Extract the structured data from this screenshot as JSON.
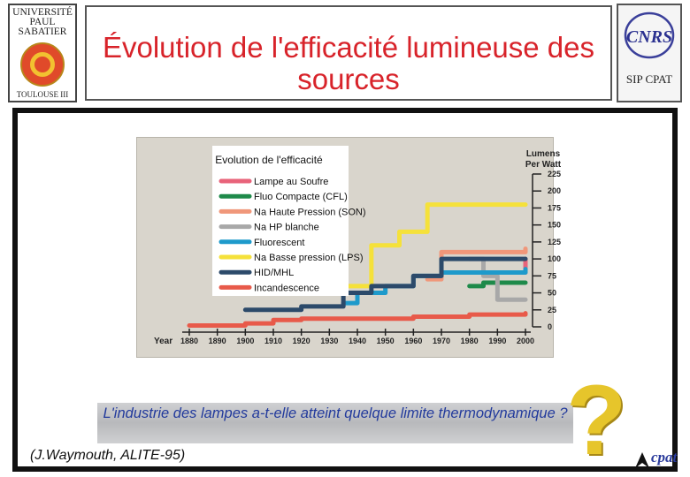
{
  "header": {
    "title": "Évolution de l'efficacité lumineuse des sources",
    "left_logo": {
      "lines": [
        "UNIVERSITÉ",
        "PAUL",
        "SABATIER"
      ],
      "footer": "TOULOUSE III",
      "name": "ups-logo"
    },
    "right_logo": {
      "brand": "CNRS",
      "sub": "SIP CPAT"
    }
  },
  "footer": {
    "question": "L'industrie des lampes a-t-elle atteint quelque limite thermodynamique ?",
    "question_mark": "?",
    "credit": "(J.Waymouth, ALITE-95)",
    "brand": "cpat"
  },
  "colors": {
    "title": "#d8232a",
    "question": "#223a9c",
    "qmark": "#e6c52b"
  },
  "chart_data": {
    "type": "line",
    "title": "Evolution de l'efficacité",
    "ylabel": "Lumens Per Watt",
    "xlabel": "Year",
    "x_ticks": [
      1880,
      1890,
      1900,
      1910,
      1920,
      1930,
      1940,
      1950,
      1960,
      1970,
      1980,
      1990,
      2000
    ],
    "y_ticks": [
      0,
      25,
      50,
      75,
      100,
      125,
      150,
      175,
      200,
      225
    ],
    "xlim": [
      1880,
      2000
    ],
    "ylim": [
      0,
      225
    ],
    "legend_position": "top-left",
    "series": [
      {
        "name": "Lampe au Soufre",
        "color": "#e8637a",
        "points": [
          [
            1990,
            80
          ],
          [
            2000,
            100
          ]
        ]
      },
      {
        "name": "Fluo Compacte (CFL)",
        "color": "#1e8a4a",
        "points": [
          [
            1980,
            60
          ],
          [
            1985,
            65
          ],
          [
            2000,
            65
          ]
        ]
      },
      {
        "name": "Na Haute Pression (SON)",
        "color": "#f0977a",
        "points": [
          [
            1965,
            70
          ],
          [
            1970,
            110
          ],
          [
            2000,
            115
          ]
        ]
      },
      {
        "name": "Na HP blanche",
        "color": "#a8a8a8",
        "points": [
          [
            1980,
            100
          ],
          [
            1985,
            75
          ],
          [
            1990,
            40
          ],
          [
            2000,
            40
          ]
        ]
      },
      {
        "name": "Fluorescent",
        "color": "#1e9acb",
        "points": [
          [
            1935,
            35
          ],
          [
            1940,
            50
          ],
          [
            1950,
            60
          ],
          [
            1960,
            75
          ],
          [
            1970,
            80
          ],
          [
            2000,
            85
          ]
        ]
      },
      {
        "name": "Na Basse pression (LPS)",
        "color": "#f5e13a",
        "points": [
          [
            1935,
            60
          ],
          [
            1945,
            120
          ],
          [
            1955,
            140
          ],
          [
            1965,
            180
          ],
          [
            2000,
            180
          ]
        ]
      },
      {
        "name": "HID/MHL",
        "color": "#2c4a6a",
        "points": [
          [
            1900,
            25
          ],
          [
            1920,
            30
          ],
          [
            1935,
            50
          ],
          [
            1945,
            60
          ],
          [
            1960,
            75
          ],
          [
            1970,
            100
          ],
          [
            2000,
            100
          ]
        ]
      },
      {
        "name": "Incandescence",
        "color": "#e85a4a",
        "points": [
          [
            1880,
            2
          ],
          [
            1900,
            5
          ],
          [
            1910,
            10
          ],
          [
            1920,
            12
          ],
          [
            1960,
            15
          ],
          [
            1980,
            18
          ],
          [
            2000,
            20
          ]
        ]
      }
    ]
  }
}
